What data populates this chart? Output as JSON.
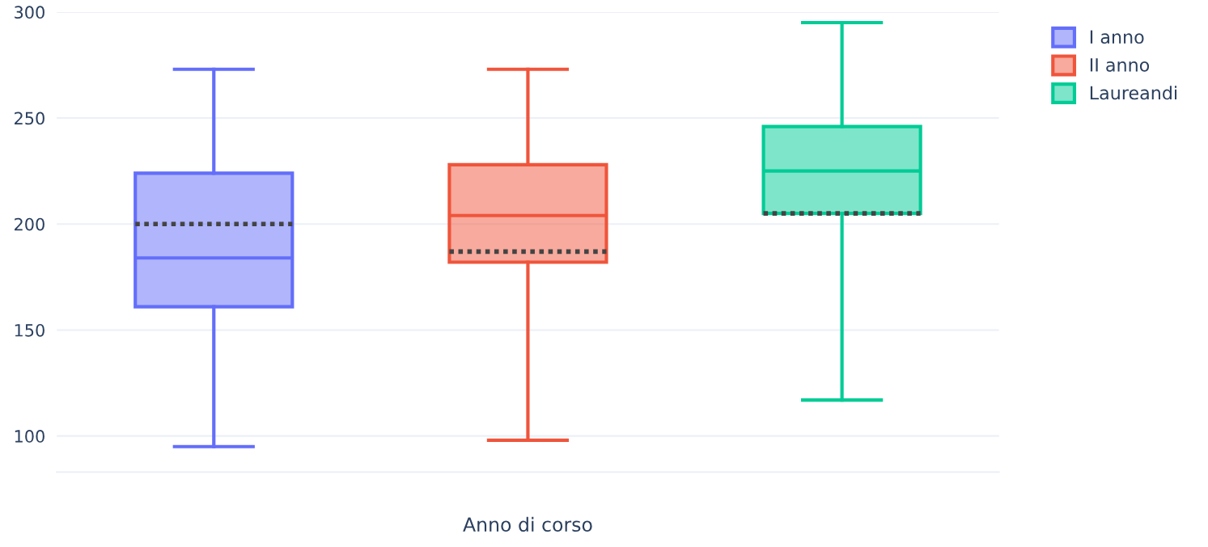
{
  "chart_data": {
    "type": "box",
    "xlabel": "Anno di corso",
    "categories": [
      null,
      null,
      null
    ],
    "ylim": [
      83,
      300
    ],
    "yticks": [
      100,
      150,
      200,
      250,
      300
    ],
    "grid": "y",
    "legend": "top right",
    "tick_labels": "y",
    "series": [
      {
        "name": "I anno",
        "color": "#636efa",
        "boxes": [
          {
            "low": 95,
            "q1": 161,
            "median": 184,
            "q3": 224,
            "high": 273,
            "mean": 200
          },
          null,
          null
        ]
      },
      {
        "name": "II anno",
        "color": "#ef553b",
        "boxes": [
          null,
          {
            "low": 98,
            "q1": 182,
            "median": 204,
            "q3": 228,
            "high": 273,
            "mean": 187
          },
          null
        ]
      },
      {
        "name": "Laureandi",
        "color": "#00cc96",
        "boxes": [
          null,
          null,
          {
            "low": 117,
            "q1": 205,
            "median": 225,
            "q3": 246,
            "high": 295,
            "mean": 205
          }
        ]
      }
    ]
  }
}
